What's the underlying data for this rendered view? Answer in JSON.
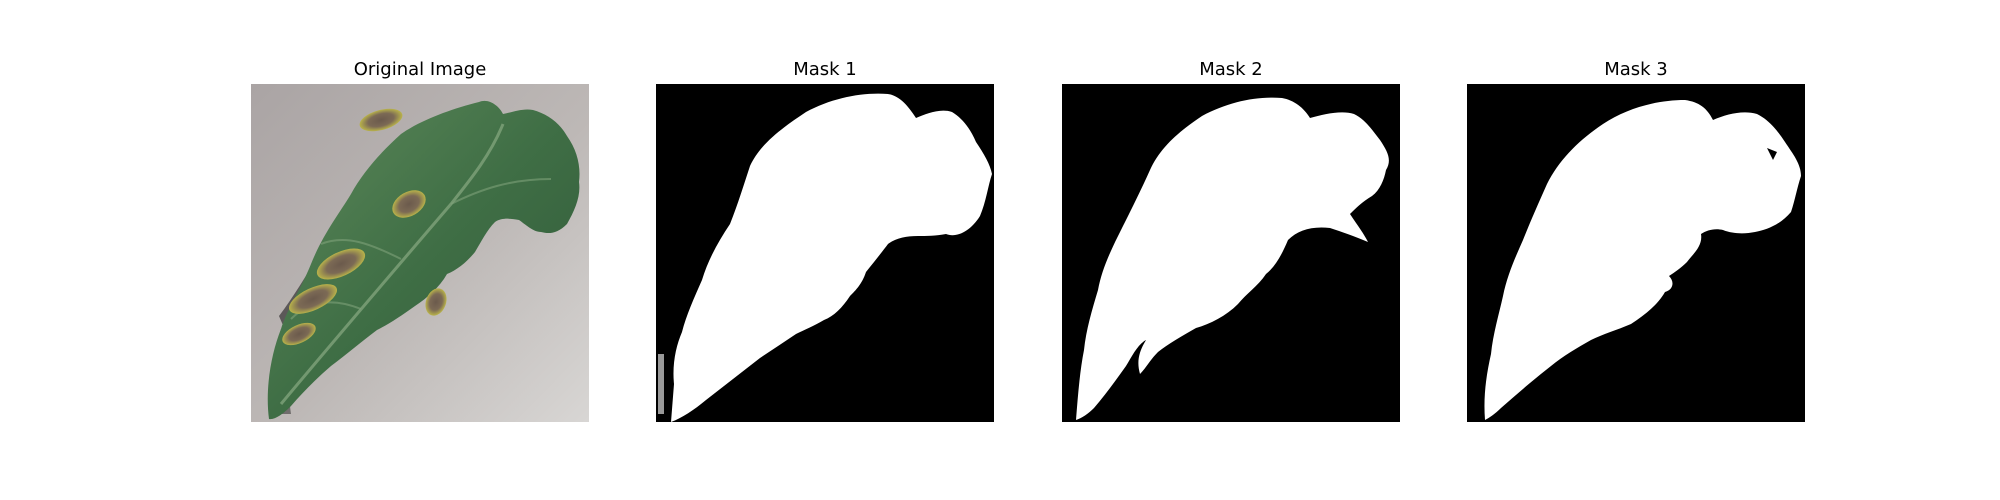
{
  "panels": [
    {
      "title": "Original Image"
    },
    {
      "title": "Mask 1"
    },
    {
      "title": "Mask 2"
    },
    {
      "title": "Mask 3"
    }
  ]
}
